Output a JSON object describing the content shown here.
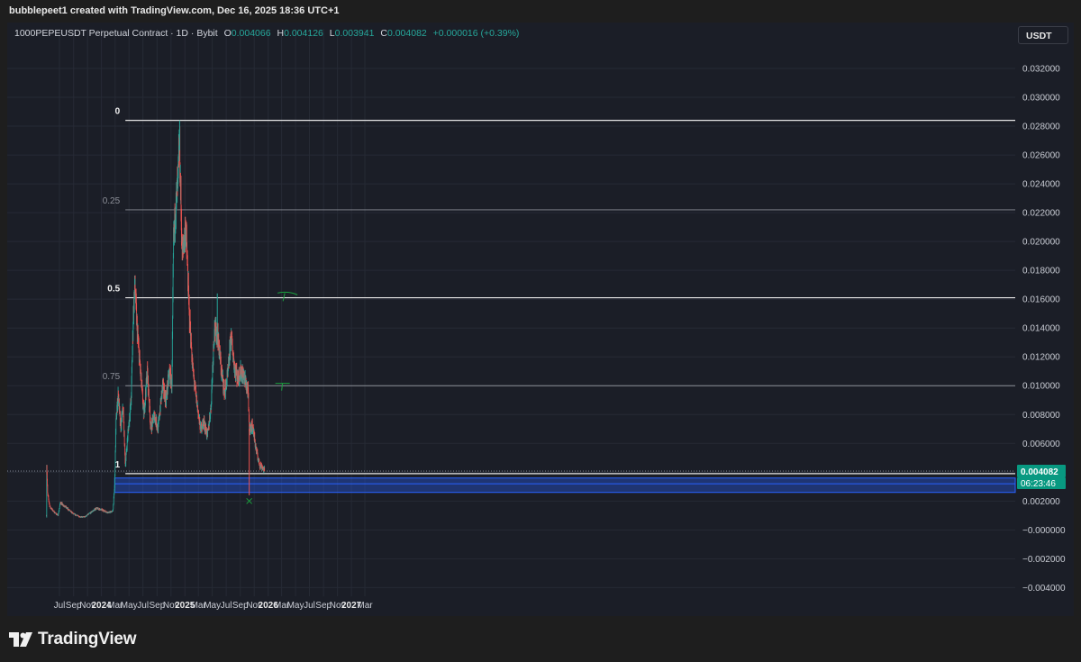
{
  "header": {
    "attribution": "bubblepeet1 created with TradingView.com, Dec 16, 2025 18:36 UTC+1"
  },
  "legend": {
    "symbol": "1000PEPEUSDT Perpetual Contract · 1D · Bybit",
    "open_label": "O",
    "open": "0.004066",
    "high_label": "H",
    "high": "0.004126",
    "low_label": "L",
    "low": "0.003941",
    "close_label": "C",
    "close": "0.004082",
    "change": "+0.000016 (+0.39%)"
  },
  "toolbar": {
    "currency": "USDT"
  },
  "price_axis": {
    "ticks": [
      "0.032000",
      "0.030000",
      "0.028000",
      "0.026000",
      "0.024000",
      "0.022000",
      "0.020000",
      "0.018000",
      "0.016000",
      "0.014000",
      "0.012000",
      "0.010000",
      "0.008000",
      "0.006000",
      "0.004000",
      "0.002000",
      "−0.000000",
      "−0.002000",
      "−0.004000"
    ],
    "last_price": "0.004082",
    "countdown": "06:23:46"
  },
  "chart_data": {
    "type": "candlestick",
    "series_name": "1000PEPEUSDT",
    "x_ticks": [
      "Jul",
      "Sep",
      "Nov",
      "2024",
      "Mar",
      "May",
      "Jul",
      "Sep",
      "Nov",
      "2025",
      "Mar",
      "May",
      "Jul",
      "Sep",
      "Nov",
      "2026",
      "Mar",
      "May",
      "Jul",
      "Sep",
      "Nov",
      "2027",
      "Mar"
    ],
    "x_tick_values": [
      "2023-07-01",
      "2023-09-01",
      "2023-11-01",
      "2024-01-01",
      "2024-03-01",
      "2024-05-01",
      "2024-07-01",
      "2024-09-01",
      "2024-11-01",
      "2025-01-01",
      "2025-03-01",
      "2025-05-01",
      "2025-07-01",
      "2025-09-01",
      "2025-11-01",
      "2026-01-01",
      "2026-03-01",
      "2026-05-01",
      "2026-07-01",
      "2026-09-01",
      "2026-11-01",
      "2027-01-01",
      "2027-03-01"
    ],
    "ylim": [
      -0.0046,
      0.0335
    ],
    "grid": true,
    "up_color": "#26a69a",
    "down_color": "#ef5350",
    "price_path": [
      [
        "2023-05-05",
        0.001
      ],
      [
        "2023-05-06",
        0.0045
      ],
      [
        "2023-05-10",
        0.0025
      ],
      [
        "2023-05-20",
        0.0016
      ],
      [
        "2023-06-10",
        0.0012
      ],
      [
        "2023-06-25",
        0.001
      ],
      [
        "2023-07-05",
        0.0019
      ],
      [
        "2023-07-20",
        0.0017
      ],
      [
        "2023-08-10",
        0.0014
      ],
      [
        "2023-09-01",
        0.0011
      ],
      [
        "2023-10-01",
        0.0009
      ],
      [
        "2023-10-20",
        0.0009
      ],
      [
        "2023-11-15",
        0.0012
      ],
      [
        "2023-12-10",
        0.0015
      ],
      [
        "2024-01-01",
        0.0014
      ],
      [
        "2024-02-01",
        0.0012
      ],
      [
        "2024-02-20",
        0.0013
      ],
      [
        "2024-02-28",
        0.003
      ],
      [
        "2024-03-05",
        0.0075
      ],
      [
        "2024-03-15",
        0.0095
      ],
      [
        "2024-03-25",
        0.007
      ],
      [
        "2024-04-05",
        0.0085
      ],
      [
        "2024-04-15",
        0.0045
      ],
      [
        "2024-04-25",
        0.0065
      ],
      [
        "2024-05-10",
        0.009
      ],
      [
        "2024-05-20",
        0.015
      ],
      [
        "2024-05-27",
        0.017
      ],
      [
        "2024-06-05",
        0.014
      ],
      [
        "2024-06-20",
        0.011
      ],
      [
        "2024-07-05",
        0.008
      ],
      [
        "2024-07-20",
        0.011
      ],
      [
        "2024-08-05",
        0.007
      ],
      [
        "2024-08-20",
        0.008
      ],
      [
        "2024-09-05",
        0.007
      ],
      [
        "2024-09-25",
        0.01
      ],
      [
        "2024-10-10",
        0.009
      ],
      [
        "2024-10-25",
        0.011
      ],
      [
        "2024-11-05",
        0.01
      ],
      [
        "2024-11-12",
        0.02
      ],
      [
        "2024-11-20",
        0.022
      ],
      [
        "2024-12-01",
        0.024
      ],
      [
        "2024-12-08",
        0.027
      ],
      [
        "2024-12-20",
        0.019
      ],
      [
        "2025-01-05",
        0.021
      ],
      [
        "2025-01-20",
        0.015
      ],
      [
        "2025-02-05",
        0.011
      ],
      [
        "2025-02-25",
        0.0085
      ],
      [
        "2025-03-10",
        0.007
      ],
      [
        "2025-03-25",
        0.0075
      ],
      [
        "2025-04-10",
        0.0065
      ],
      [
        "2025-04-25",
        0.0085
      ],
      [
        "2025-05-10",
        0.014
      ],
      [
        "2025-05-25",
        0.0135
      ],
      [
        "2025-06-10",
        0.011
      ],
      [
        "2025-06-25",
        0.0095
      ],
      [
        "2025-07-10",
        0.011
      ],
      [
        "2025-07-22",
        0.0135
      ],
      [
        "2025-08-05",
        0.0115
      ],
      [
        "2025-08-20",
        0.0105
      ],
      [
        "2025-09-05",
        0.011
      ],
      [
        "2025-09-20",
        0.0105
      ],
      [
        "2025-10-05",
        0.0095
      ],
      [
        "2025-10-10",
        0.007
      ],
      [
        "2025-10-25",
        0.0072
      ],
      [
        "2025-11-10",
        0.0055
      ],
      [
        "2025-11-25",
        0.0045
      ],
      [
        "2025-12-05",
        0.0044
      ],
      [
        "2025-12-16",
        0.0041
      ]
    ],
    "spikes": [
      {
        "date": "2024-05-27",
        "high": 0.0174
      },
      {
        "date": "2024-12-09",
        "high": 0.0284
      },
      {
        "date": "2025-05-23",
        "high": 0.0164
      },
      {
        "date": "2025-10-10",
        "low": 0.0024
      }
    ],
    "fib_retracement": {
      "start_date": "2024-04-15",
      "levels": [
        {
          "label": "0",
          "price": 0.0284
        },
        {
          "label": "0.25",
          "price": 0.0222
        },
        {
          "label": "0.5",
          "price": 0.0161
        },
        {
          "label": "0.75",
          "price": 0.01
        },
        {
          "label": "1",
          "price": 0.0039
        }
      ]
    },
    "support_zone": {
      "start_date": "2024-02-28",
      "top": 0.0036,
      "bottom": 0.0026,
      "mid": 0.0032,
      "color": "#2962ff"
    },
    "last_price_line": 0.00408,
    "annotations": [
      {
        "type": "x-mark",
        "date": "2025-10-10",
        "price": 0.002,
        "color": "#1b9e3e"
      },
      {
        "type": "pen-stroke",
        "date": "2026-03-15",
        "price": 0.0163,
        "color": "#1b9e3e"
      },
      {
        "type": "pen-stroke",
        "date": "2026-03-05",
        "price": 0.0101,
        "color": "#1b9e3e"
      }
    ]
  },
  "brand": {
    "logo_text": "TradingView",
    "logo_glyph": "tradingview-logo"
  }
}
